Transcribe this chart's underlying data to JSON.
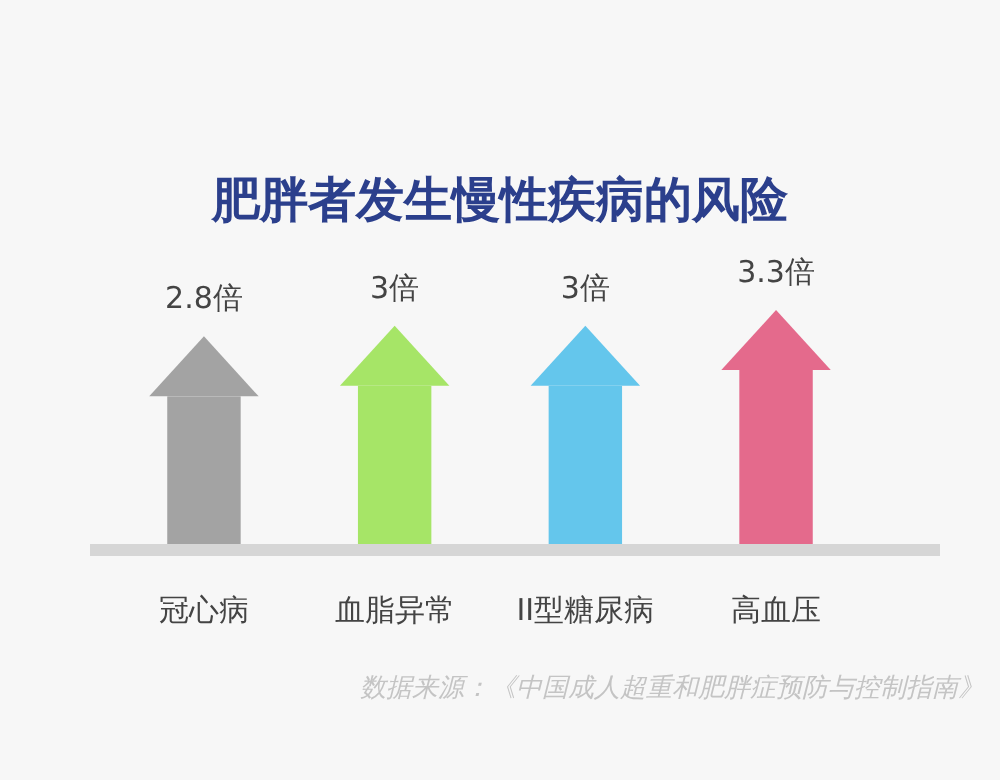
{
  "chart_data": {
    "type": "bar",
    "title": "肥胖者发生慢性疾病的风险",
    "categories": [
      "冠心病",
      "血脂异常",
      "II型糖尿病",
      "高血压"
    ],
    "values": [
      2.8,
      3,
      3,
      3.3
    ],
    "colors": [
      "#a3a3a3",
      "#a6e567",
      "#64c6ec",
      "#e46a8c"
    ],
    "value_labels": [
      "2.8倍",
      "3倍",
      "3倍",
      "3.3倍"
    ],
    "annotations": [
      "数据来源：《中国成人超重和肥胖症预防与控制指南》"
    ]
  }
}
